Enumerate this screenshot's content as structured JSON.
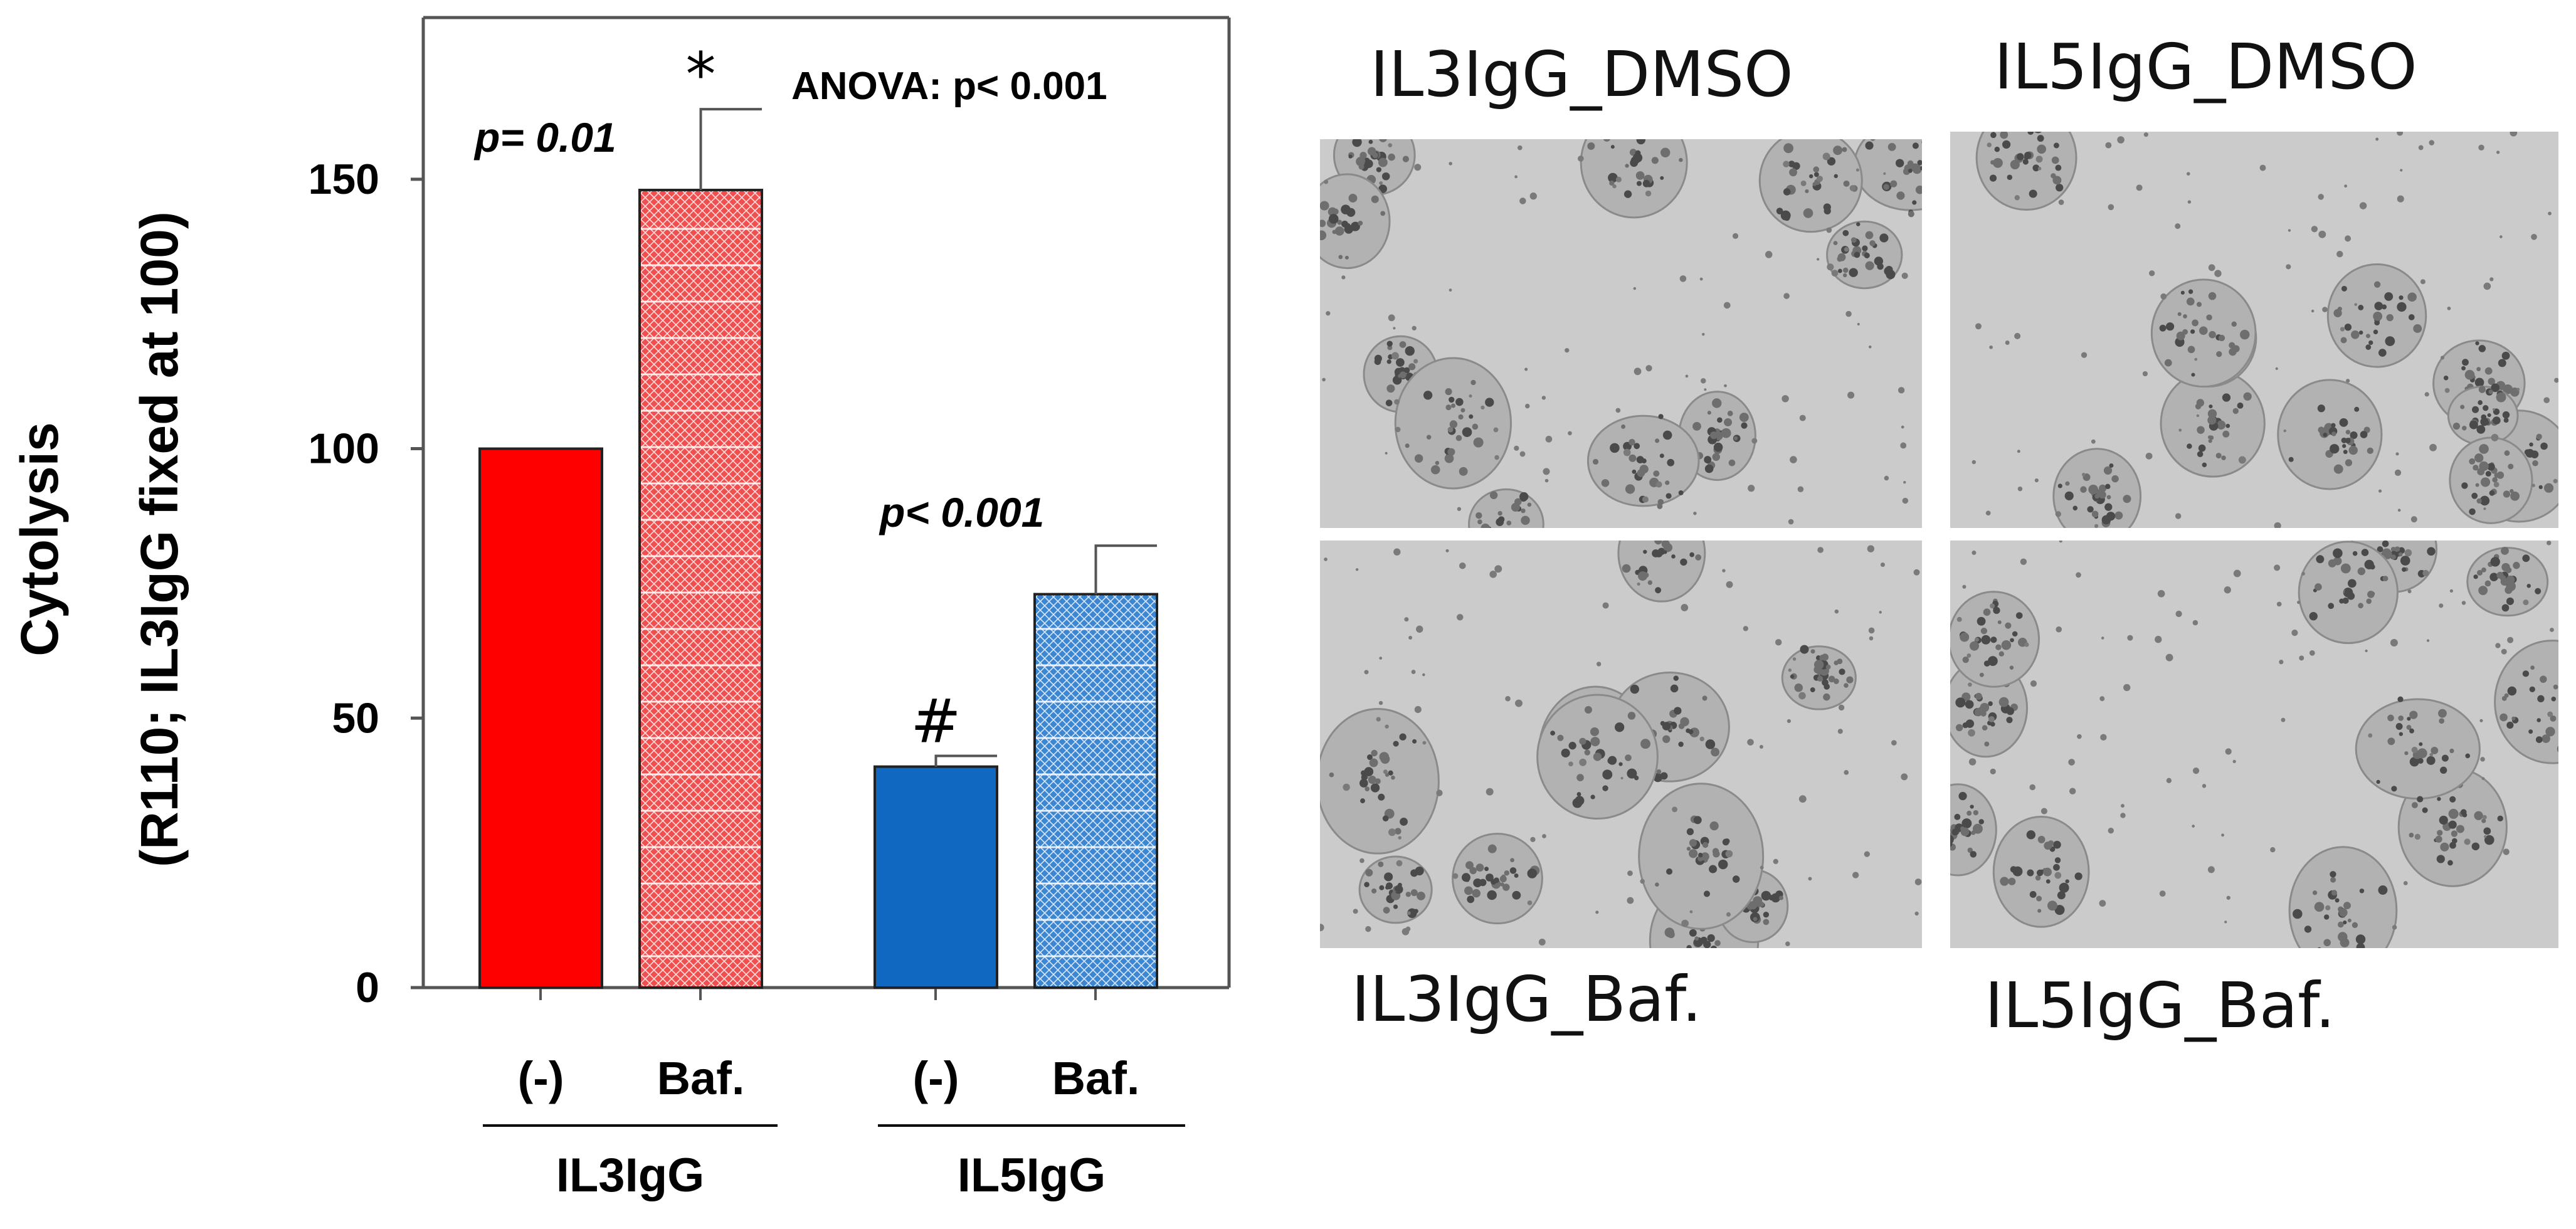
{
  "chart_data": {
    "type": "bar",
    "ylabel_line1": "Cytolysis",
    "ylabel_line2": "(R110; IL3IgG fixed at 100)",
    "ylim": [
      0,
      180
    ],
    "yticks": [
      0,
      50,
      100,
      150
    ],
    "categories": [
      "(-)",
      "Baf.",
      "(-)",
      "Baf."
    ],
    "groups": [
      {
        "name": "IL3IgG",
        "bars": [
          0,
          1
        ]
      },
      {
        "name": "IL5IgG",
        "bars": [
          2,
          3
        ]
      }
    ],
    "values": [
      100,
      148,
      41,
      73
    ],
    "errors": [
      0,
      15,
      2,
      9
    ],
    "bar_colors": [
      "#ff0000",
      "#ef4f4f",
      "#1068c0",
      "#3c86d2"
    ],
    "bar_patterned": [
      false,
      true,
      false,
      true
    ],
    "bar_marks": [
      "",
      "*",
      "#",
      ""
    ],
    "annotations": {
      "anova": "ANOVA: p< 0.001",
      "il3_p": "p= 0.01",
      "il5_p": "p< 0.001"
    }
  },
  "micrographs": [
    {
      "label": "IL3IgG_DMSO",
      "seed": 11
    },
    {
      "label": "IL5IgG_DMSO",
      "seed": 23
    },
    {
      "label": "IL3IgG_Baf.",
      "seed": 37
    },
    {
      "label": "IL5IgG_Baf.",
      "seed": 53
    }
  ]
}
